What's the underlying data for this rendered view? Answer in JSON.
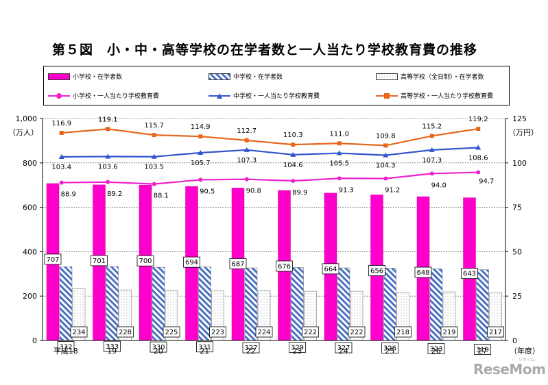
{
  "title": "第５図　小・中・高等学校の在学者数と一人当たり学校教育費の推移",
  "legend": {
    "bar_elem": "小学校・在学者数",
    "bar_mid": "中学校・在学者数",
    "bar_high": "高等学校（全日制）・在学者数",
    "line_elem": "小学校・一人当たり学校教育費",
    "line_mid": "中学校・一人当たり学校教育費",
    "line_high": "高等学校・一人当たり学校教育費"
  },
  "watermark": "ReseMom",
  "watermark_small": "リセマム",
  "colors": {
    "elem": "#ff00cc",
    "mid": "#3a58a8",
    "high": "#e8661c",
    "line_elem": "#ee22cc",
    "line_mid": "#3355cc",
    "line_high": "#e8661c"
  },
  "chart_data": {
    "type": "bar",
    "title": "第５図　小・中・高等学校の在学者数と一人当たり学校教育費の推移",
    "categories": [
      "平成18",
      "19",
      "20",
      "21",
      "22",
      "23",
      "24",
      "25",
      "26",
      "27"
    ],
    "xlabel": "（年度）",
    "ylabel_left": "（万人）",
    "ylabel_right": "（万円）",
    "ylim_left": [
      0,
      1000
    ],
    "yticks_left": [
      "0",
      "200",
      "400",
      "600",
      "800",
      "1,000"
    ],
    "ylim_right": [
      0,
      125
    ],
    "yticks_right": [
      "0",
      "25",
      "50",
      "75",
      "100",
      "125"
    ],
    "bar_series": [
      {
        "name": "小学校・在学者数",
        "values": [
          707,
          701,
          700,
          694,
          687,
          676,
          664,
          656,
          648,
          643
        ]
      },
      {
        "name": "中学校・在学者数",
        "values": [
          332,
          333,
          330,
          331,
          327,
          329,
          327,
          326,
          323,
          319
        ]
      },
      {
        "name": "高等学校（全日制）・在学者数",
        "values": [
          234,
          228,
          225,
          223,
          224,
          222,
          222,
          218,
          219,
          217
        ]
      }
    ],
    "line_series": [
      {
        "name": "小学校・一人当たり学校教育費",
        "values": [
          88.9,
          89.2,
          88.1,
          90.5,
          90.8,
          89.9,
          91.3,
          91.2,
          94.0,
          94.7
        ]
      },
      {
        "name": "中学校・一人当たり学校教育費",
        "values": [
          103.4,
          103.6,
          103.5,
          105.7,
          107.3,
          104.6,
          105.5,
          104.3,
          107.3,
          108.6
        ]
      },
      {
        "name": "高等学校・一人当たり学校教育費",
        "values": [
          116.9,
          119.1,
          115.7,
          114.9,
          112.7,
          110.3,
          111.0,
          109.8,
          115.2,
          119.2
        ]
      }
    ],
    "bar_labels": {
      "elem": [
        "707",
        "701",
        "700",
        "694",
        "687",
        "676",
        "664",
        "656",
        "648",
        "643"
      ],
      "mid": [
        "332",
        "333",
        "330",
        "331",
        "327",
        "329",
        "327",
        "326",
        "323",
        "319"
      ],
      "high": [
        "234",
        "228",
        "225",
        "223",
        "224",
        "222",
        "222",
        "218",
        "219",
        "217"
      ]
    },
    "line_labels": {
      "elem": [
        "88.9",
        "89.2",
        "88.1",
        "90.5",
        "90.8",
        "89.9",
        "91.3",
        "91.2",
        "94.0",
        "94.7"
      ],
      "mid": [
        "103.4",
        "103.6",
        "103.5",
        "105.7",
        "107.3",
        "104.6",
        "105.5",
        "104.3",
        "107.3",
        "108.6"
      ],
      "high": [
        "116.9",
        "119.1",
        "115.7",
        "114.9",
        "112.7",
        "110.3",
        "111.0",
        "109.8",
        "115.2",
        "119.2"
      ]
    }
  }
}
